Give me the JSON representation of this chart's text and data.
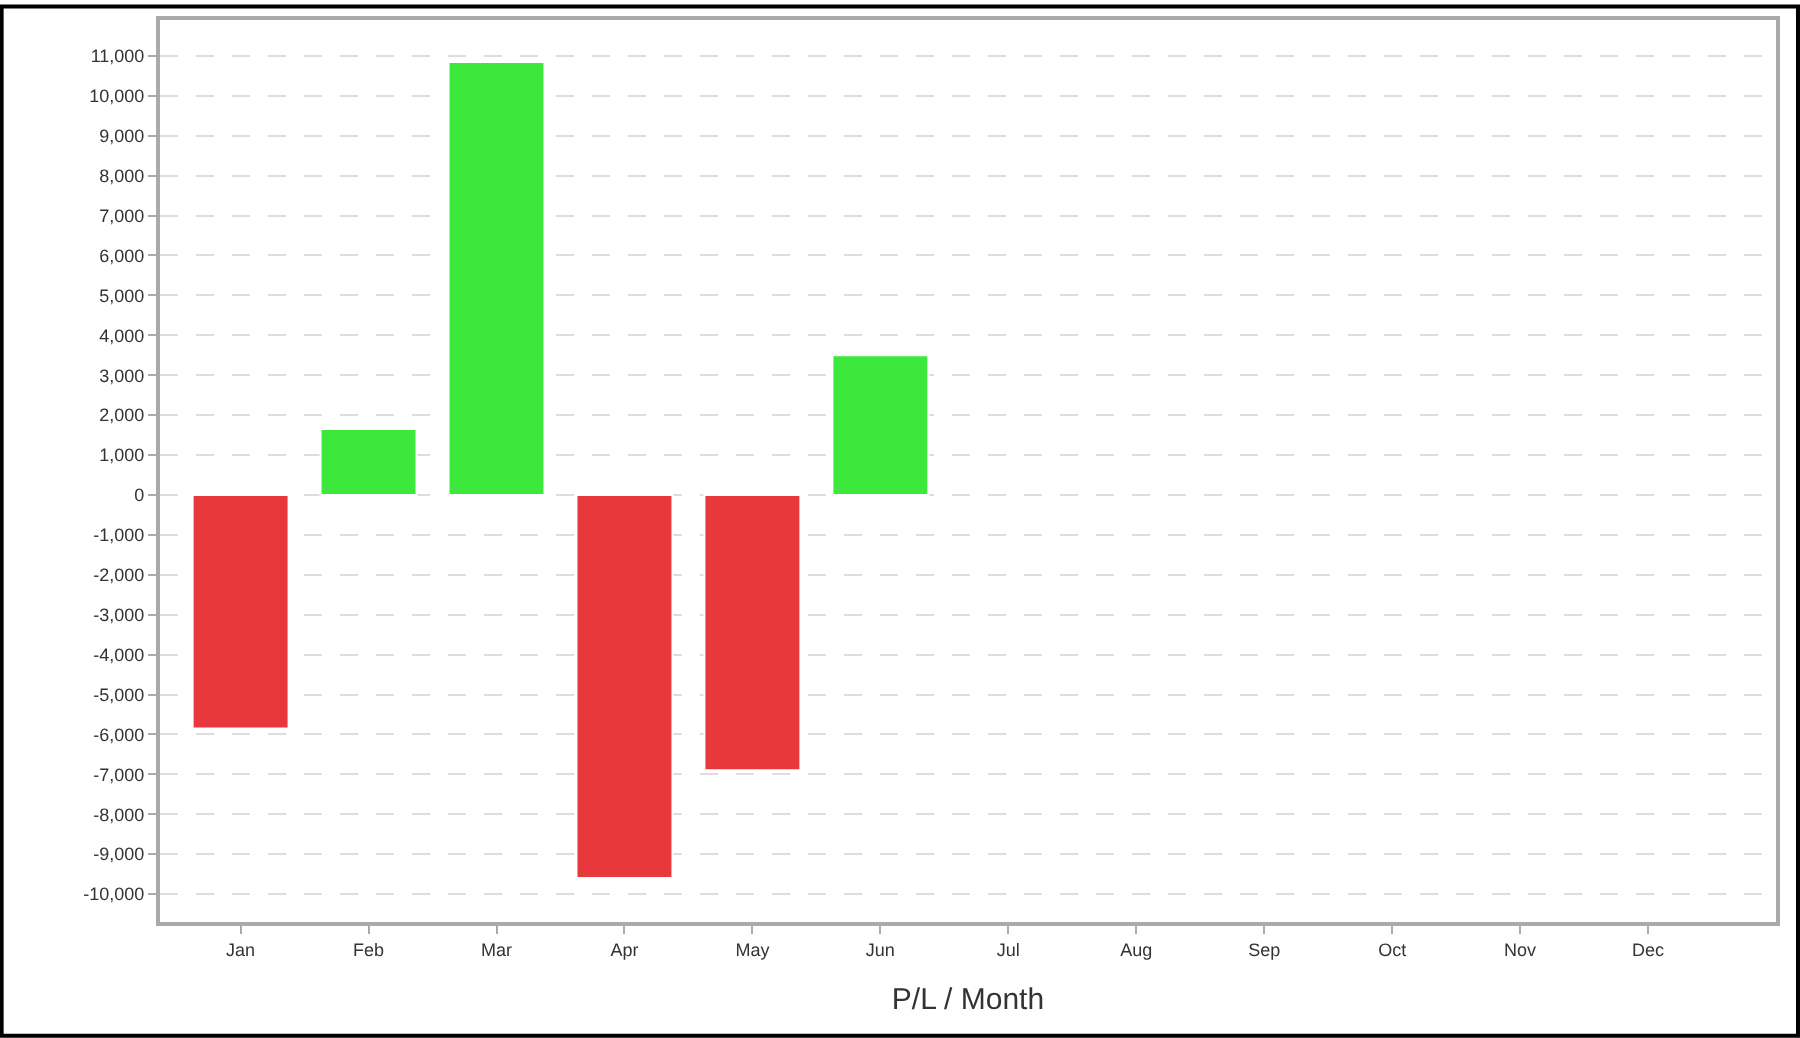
{
  "chart_data": {
    "type": "bar",
    "xlabel": "P/L / Month",
    "categories": [
      "Jan",
      "Feb",
      "Mar",
      "Apr",
      "May",
      "Jun",
      "Jul",
      "Aug",
      "Sep",
      "Oct",
      "Nov",
      "Dec"
    ],
    "values": [
      -5850,
      1650,
      10850,
      -9600,
      -6900,
      3500,
      null,
      null,
      null,
      null,
      null,
      null
    ],
    "colors": [
      "#e8383d",
      "#3ce83c",
      "#3ce83c",
      "#e8383d",
      "#e8383d",
      "#3ce83c",
      null,
      null,
      null,
      null,
      null,
      null
    ],
    "ylim": [
      -10700,
      11900
    ],
    "yticks": [
      {
        "value": -10000,
        "label": "-10,000"
      },
      {
        "value": -9000,
        "label": "-9,000"
      },
      {
        "value": -8000,
        "label": "-8,000"
      },
      {
        "value": -7000,
        "label": "-7,000"
      },
      {
        "value": -6000,
        "label": "-6,000"
      },
      {
        "value": -5000,
        "label": "-5,000"
      },
      {
        "value": -4000,
        "label": "-4,000"
      },
      {
        "value": -3000,
        "label": "-3,000"
      },
      {
        "value": -2000,
        "label": "-2,000"
      },
      {
        "value": -1000,
        "label": "-1,000"
      },
      0,
      {
        "value": 1000,
        "label": "1,000"
      },
      {
        "value": 2000,
        "label": "2,000"
      },
      {
        "value": 3000,
        "label": "3,000"
      },
      {
        "value": 4000,
        "label": "4,000"
      },
      {
        "value": 5000,
        "label": "5,000"
      },
      {
        "value": 6000,
        "label": "6,000"
      },
      {
        "value": 7000,
        "label": "7,000"
      },
      {
        "value": 8000,
        "label": "8,000"
      },
      {
        "value": 9000,
        "label": "9,000"
      },
      {
        "value": 10000,
        "label": "10,000"
      },
      {
        "value": 11000,
        "label": "11,000"
      }
    ],
    "grid": "y"
  }
}
